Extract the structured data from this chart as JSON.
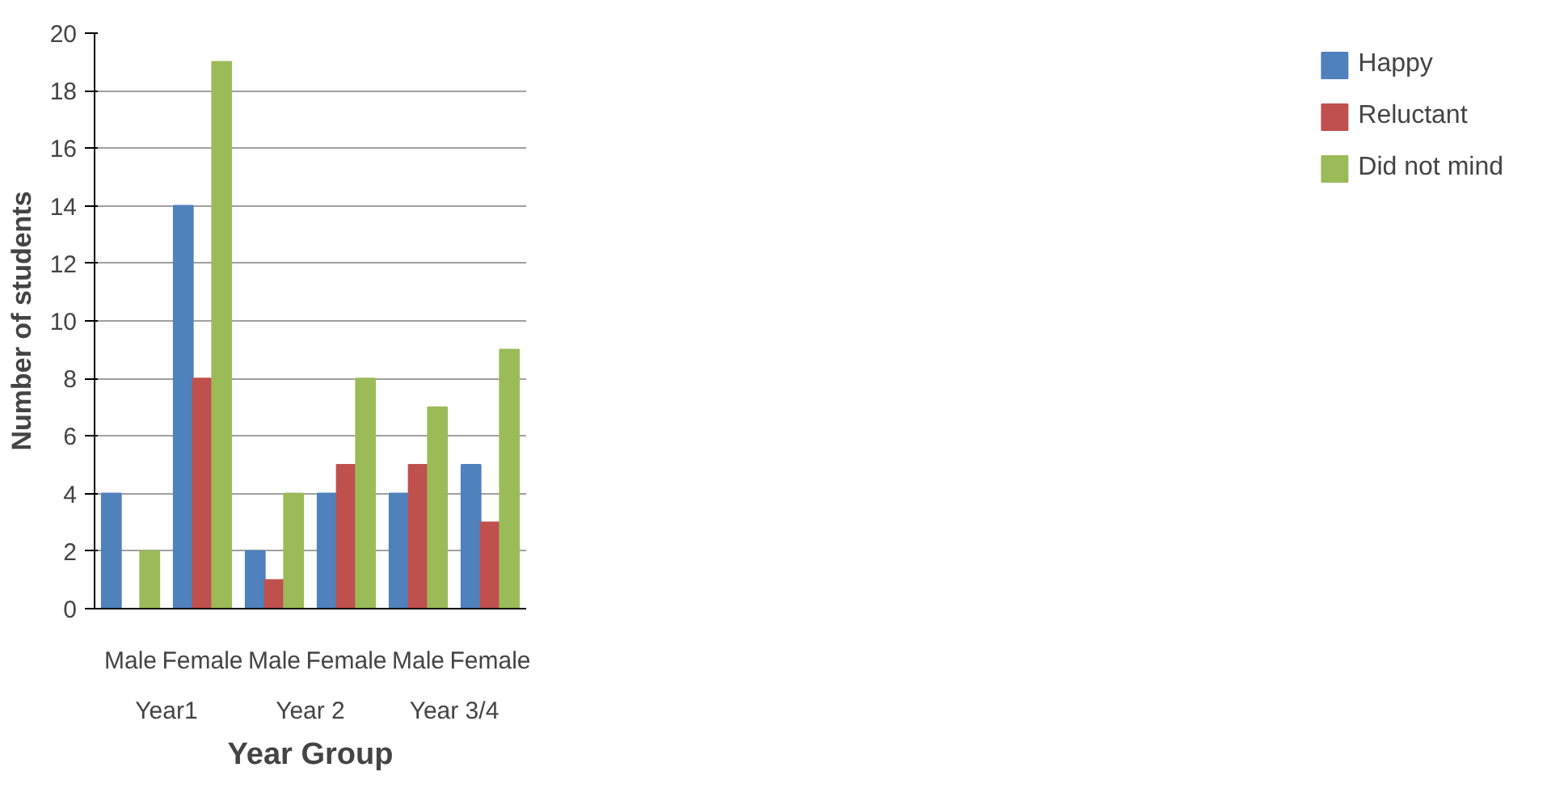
{
  "chart_data": {
    "type": "bar",
    "xlabel": "Year Group",
    "ylabel": "Number of students",
    "categories": [
      "Male",
      "Female",
      "Male",
      "Female",
      "Male",
      "Female"
    ],
    "series": [
      {
        "name": "Happy",
        "color": "#4f81bd",
        "values": [
          4,
          14,
          2,
          4,
          4,
          5
        ]
      },
      {
        "name": "Reluctant",
        "color": "#c0504d",
        "values": [
          0,
          8,
          1,
          5,
          5,
          3
        ]
      },
      {
        "name": "Did not mind",
        "color": "#9bbb59",
        "values": [
          2,
          19,
          4,
          8,
          7,
          9
        ]
      }
    ],
    "annotations": [
      "Year1",
      "Year 2",
      "Year 3/4"
    ],
    "ylim": [
      0,
      20
    ],
    "yticks": [
      0,
      2,
      4,
      6,
      8,
      10,
      12,
      14,
      16,
      18,
      20
    ],
    "grid": "y",
    "legend": "right"
  }
}
